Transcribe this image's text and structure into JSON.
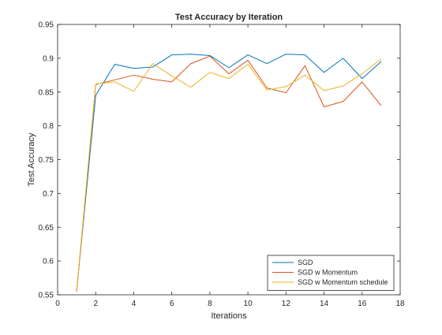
{
  "chart_data": {
    "type": "line",
    "title": "Test Accuracy by Iteration",
    "xlabel": "Iterations",
    "ylabel": "Test Accuracy",
    "xlim": [
      0,
      18
    ],
    "ylim": [
      0.55,
      0.95
    ],
    "xticks": [
      0,
      2,
      4,
      6,
      8,
      10,
      12,
      14,
      16,
      18
    ],
    "xtick_labels": [
      "0",
      "2",
      "4",
      "6",
      "8",
      "10",
      "12",
      "14",
      "16",
      "18"
    ],
    "yticks": [
      0.55,
      0.6,
      0.65,
      0.7,
      0.75,
      0.8,
      0.85,
      0.9,
      0.95
    ],
    "ytick_labels": [
      "0.55",
      "0.6",
      "0.65",
      "0.7",
      "0.75",
      "0.8",
      "0.85",
      "0.9",
      "0.95"
    ],
    "grid": false,
    "legend_position": "bottom-right",
    "x": [
      1,
      2,
      3,
      4,
      5,
      6,
      7,
      8,
      9,
      10,
      11,
      12,
      13,
      14,
      15,
      16,
      17
    ],
    "series": [
      {
        "name": "SGD",
        "color": "#0072BD",
        "values": [
          0.555,
          0.845,
          0.891,
          0.885,
          0.887,
          0.905,
          0.906,
          0.904,
          0.886,
          0.905,
          0.892,
          0.906,
          0.905,
          0.879,
          0.9,
          0.87,
          0.895
        ]
      },
      {
        "name": "SGD w Momentum",
        "color": "#D95319",
        "values": [
          0.555,
          0.861,
          0.868,
          0.875,
          0.869,
          0.865,
          0.892,
          0.903,
          0.877,
          0.897,
          0.856,
          0.849,
          0.889,
          0.828,
          0.836,
          0.865,
          0.83
        ]
      },
      {
        "name": "SGD w Momentum schedule",
        "color": "#EDB120",
        "values": [
          0.555,
          0.862,
          0.865,
          0.851,
          0.892,
          0.874,
          0.857,
          0.879,
          0.87,
          0.891,
          0.853,
          0.858,
          0.875,
          0.852,
          0.859,
          0.877,
          0.899
        ]
      }
    ]
  }
}
